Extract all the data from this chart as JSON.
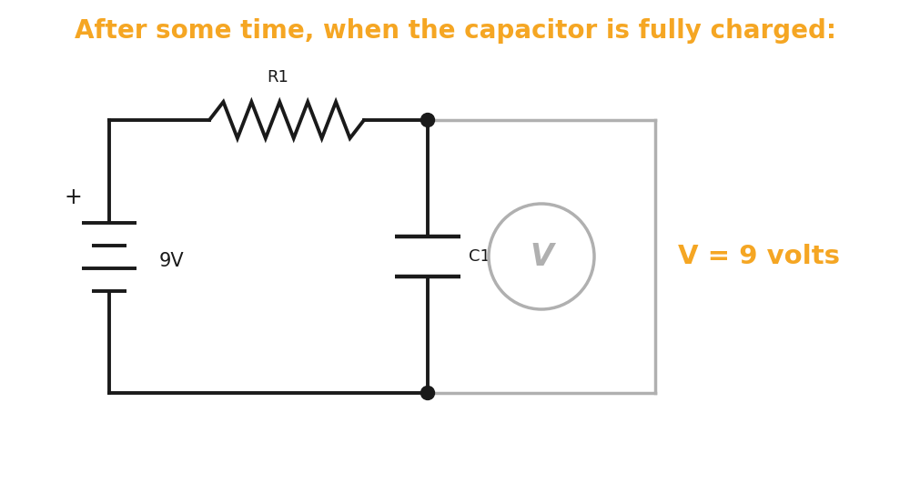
{
  "title": "After some time, when the capacitor is fully charged:",
  "title_color": "#F5A623",
  "title_fontsize": 20,
  "bg_color": "#FFFFFF",
  "circuit_color": "#1a1a1a",
  "gray_color": "#B0B0B0",
  "orange_color": "#F5A623",
  "voltage_label": "V = 9 volts",
  "battery_label": "9V",
  "r1_label": "R1",
  "c1_label": "C1",
  "voltmeter_label": "V",
  "lw": 2.8,
  "gray_lw": 2.5
}
